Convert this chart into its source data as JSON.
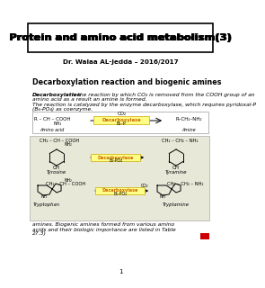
{
  "title": "Protein and amino acid metabolism(3)",
  "subtitle": "Dr. Walaa AL-Jedda – 2016/2017",
  "section_title": "Decarboxylation reaction and biogenic amines",
  "background": "#ffffff",
  "page_bg": "#f5f5ef",
  "title_color": "#000000",
  "subtitle_color": "#000000"
}
